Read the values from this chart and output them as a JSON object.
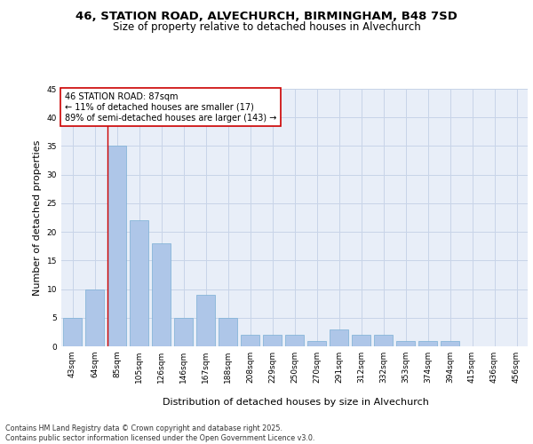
{
  "title_line1": "46, STATION ROAD, ALVECHURCH, BIRMINGHAM, B48 7SD",
  "title_line2": "Size of property relative to detached houses in Alvechurch",
  "xlabel": "Distribution of detached houses by size in Alvechurch",
  "ylabel": "Number of detached properties",
  "categories": [
    "43sqm",
    "64sqm",
    "85sqm",
    "105sqm",
    "126sqm",
    "146sqm",
    "167sqm",
    "188sqm",
    "208sqm",
    "229sqm",
    "250sqm",
    "270sqm",
    "291sqm",
    "312sqm",
    "332sqm",
    "353sqm",
    "374sqm",
    "394sqm",
    "415sqm",
    "436sqm",
    "456sqm"
  ],
  "values": [
    5,
    10,
    35,
    22,
    18,
    5,
    9,
    5,
    2,
    2,
    2,
    1,
    3,
    2,
    2,
    1,
    1,
    1,
    0,
    0,
    0
  ],
  "bar_color": "#aec6e8",
  "bar_edge_color": "#7aafd4",
  "grid_color": "#c8d4e8",
  "background_color": "#e8eef8",
  "vline_color": "#cc0000",
  "annotation_text": "46 STATION ROAD: 87sqm\n← 11% of detached houses are smaller (17)\n89% of semi-detached houses are larger (143) →",
  "annotation_box_color": "#cc0000",
  "ylim": [
    0,
    45
  ],
  "yticks": [
    0,
    5,
    10,
    15,
    20,
    25,
    30,
    35,
    40,
    45
  ],
  "footer_text": "Contains HM Land Registry data © Crown copyright and database right 2025.\nContains public sector information licensed under the Open Government Licence v3.0.",
  "title_fontsize": 9.5,
  "subtitle_fontsize": 8.5,
  "axis_label_fontsize": 8,
  "tick_fontsize": 6.5,
  "annotation_fontsize": 7,
  "footer_fontsize": 5.8
}
